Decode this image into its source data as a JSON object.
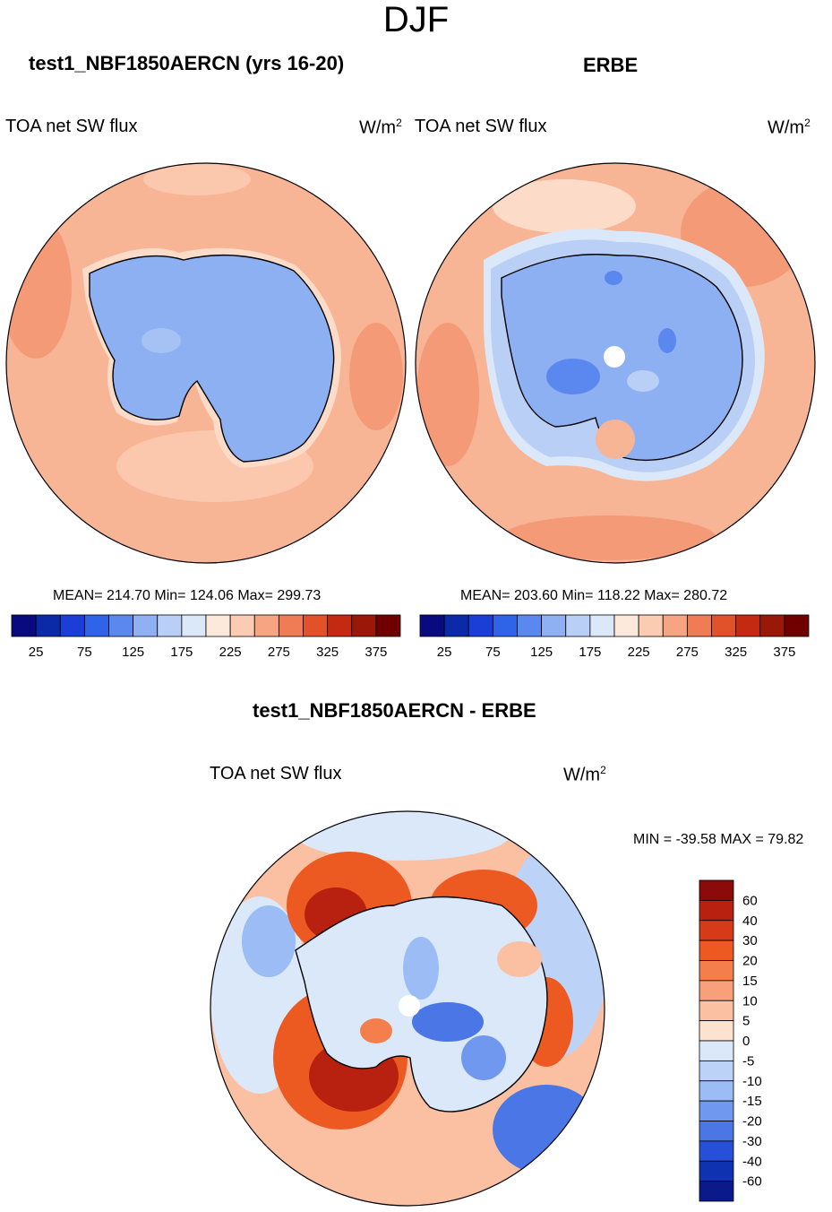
{
  "page_title": "DJF",
  "panels": {
    "left": {
      "title": "test1_NBF1850AERCN (yrs 16-20)",
      "var_label": "TOA net SW flux",
      "units": "W/m",
      "units_sup": "2",
      "stats": "MEAN= 214.70  Min= 124.06  Max= 299.73"
    },
    "right": {
      "title": "ERBE",
      "var_label": "TOA net SW flux",
      "units": "W/m",
      "units_sup": "2",
      "stats": "MEAN= 203.60  Min= 118.22  Max= 280.72"
    },
    "diff": {
      "title": "test1_NBF1850AERCN - ERBE",
      "var_label": "TOA net SW flux",
      "units": "W/m",
      "units_sup": "2",
      "stats": "MIN = -39.58 MAX =  79.82"
    }
  },
  "chart_data": [
    {
      "type": "heatmap",
      "projection": "south polar stereographic",
      "title": "test1_NBF1850AERCN (yrs 16-20)",
      "variable": "TOA net SW flux",
      "units": "W/m2",
      "mean": 214.7,
      "min": 124.06,
      "max": 299.73,
      "colorbar": {
        "orientation": "horizontal",
        "tick_labels": [
          "25",
          "75",
          "125",
          "175",
          "225",
          "275",
          "325",
          "375"
        ],
        "colors": [
          "#0a0a80",
          "#0b2aa8",
          "#1a3ed6",
          "#2f63e8",
          "#5a88ee",
          "#8fb0f2",
          "#b9cff6",
          "#dbe8fa",
          "#fde8dc",
          "#fbcbb2",
          "#f7a483",
          "#f07c56",
          "#e2522a",
          "#c42a12",
          "#991808",
          "#700000"
        ]
      }
    },
    {
      "type": "heatmap",
      "projection": "south polar stereographic",
      "title": "ERBE",
      "variable": "TOA net SW flux",
      "units": "W/m2",
      "mean": 203.6,
      "min": 118.22,
      "max": 280.72,
      "colorbar": {
        "orientation": "horizontal",
        "tick_labels": [
          "25",
          "75",
          "125",
          "175",
          "225",
          "275",
          "325",
          "375"
        ],
        "colors": [
          "#0a0a80",
          "#0b2aa8",
          "#1a3ed6",
          "#2f63e8",
          "#5a88ee",
          "#8fb0f2",
          "#b9cff6",
          "#dbe8fa",
          "#fde8dc",
          "#fbcbb2",
          "#f7a483",
          "#f07c56",
          "#e2522a",
          "#c42a12",
          "#991808",
          "#700000"
        ]
      }
    },
    {
      "type": "heatmap",
      "projection": "south polar stereographic",
      "title": "test1_NBF1850AERCN - ERBE",
      "variable": "TOA net SW flux",
      "units": "W/m2",
      "min": -39.58,
      "max": 79.82,
      "colorbar": {
        "orientation": "vertical",
        "tick_labels": [
          "60",
          "40",
          "30",
          "20",
          "15",
          "10",
          "5",
          "0",
          "-5",
          "-10",
          "-15",
          "-20",
          "-30",
          "-40",
          "-60"
        ],
        "colors": [
          "#8b0a0a",
          "#b82010",
          "#d63a18",
          "#ec5a22",
          "#f47e4c",
          "#f8a07a",
          "#fbc0a2",
          "#fde2d0",
          "#dbe8fa",
          "#bcd3f7",
          "#9bbcf4",
          "#6f98ee",
          "#4a76e6",
          "#2650d8",
          "#0f32b0",
          "#0a1a8a"
        ]
      }
    }
  ],
  "colors": {
    "water_warm": "#f8b596",
    "water_warm_dark": "#f49a76",
    "ice_blue": "#8db0f3",
    "ice_blue_mid": "#a6c1f4",
    "coast": "#000000"
  }
}
